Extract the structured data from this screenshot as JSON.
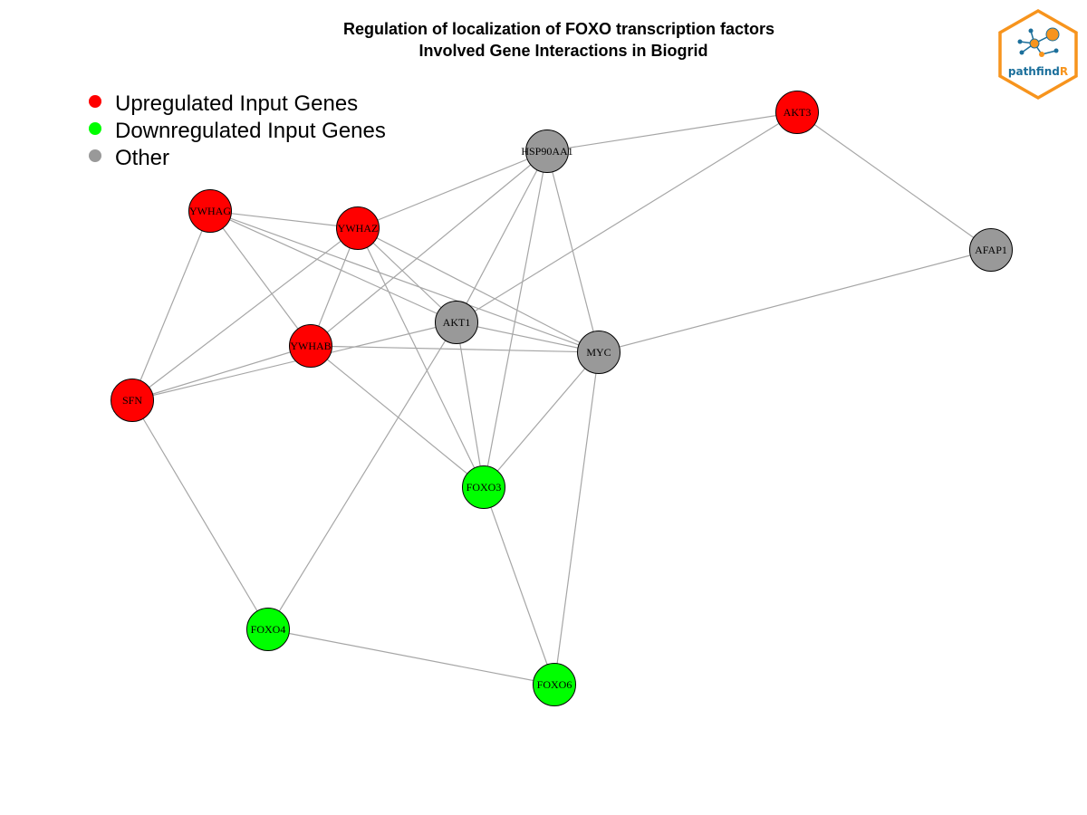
{
  "title": {
    "line1": "Regulation of localization of FOXO transcription factors",
    "line2": "Involved Gene Interactions in Biogrid"
  },
  "legend": [
    {
      "label": "Upregulated Input Genes",
      "color": "#ff0000"
    },
    {
      "label": "Downregulated Input Genes",
      "color": "#00ff00"
    },
    {
      "label": "Other",
      "color": "#999999"
    }
  ],
  "logo": {
    "text_main": "pathfind",
    "text_accent": "R",
    "border_color": "#f7941d",
    "text_color": "#1b6f9b",
    "accent_color": "#f7941d"
  },
  "colors": {
    "up": "#ff0000",
    "down": "#00ff00",
    "other": "#999999",
    "edge": "#a6a6a6"
  },
  "network": {
    "nodes": [
      {
        "id": "AKT3",
        "group": "up"
      },
      {
        "id": "HSP90AA1",
        "group": "other"
      },
      {
        "id": "YWHAG",
        "group": "up"
      },
      {
        "id": "YWHAZ",
        "group": "up"
      },
      {
        "id": "AFAP1",
        "group": "other"
      },
      {
        "id": "AKT1",
        "group": "other"
      },
      {
        "id": "YWHAB",
        "group": "up"
      },
      {
        "id": "MYC",
        "group": "other"
      },
      {
        "id": "SFN",
        "group": "up"
      },
      {
        "id": "FOXO3",
        "group": "down"
      },
      {
        "id": "FOXO4",
        "group": "down"
      },
      {
        "id": "FOXO6",
        "group": "down"
      }
    ],
    "edges": [
      [
        "HSP90AA1",
        "AKT3"
      ],
      [
        "AKT3",
        "AFAP1"
      ],
      [
        "AKT3",
        "AKT1"
      ],
      [
        "HSP90AA1",
        "YWHAZ"
      ],
      [
        "HSP90AA1",
        "AKT1"
      ],
      [
        "HSP90AA1",
        "MYC"
      ],
      [
        "HSP90AA1",
        "YWHAB"
      ],
      [
        "HSP90AA1",
        "FOXO3"
      ],
      [
        "YWHAG",
        "YWHAZ"
      ],
      [
        "YWHAG",
        "AKT1"
      ],
      [
        "YWHAG",
        "MYC"
      ],
      [
        "YWHAG",
        "YWHAB"
      ],
      [
        "YWHAG",
        "SFN"
      ],
      [
        "YWHAZ",
        "YWHAB"
      ],
      [
        "YWHAZ",
        "AKT1"
      ],
      [
        "YWHAZ",
        "MYC"
      ],
      [
        "YWHAZ",
        "SFN"
      ],
      [
        "YWHAZ",
        "FOXO3"
      ],
      [
        "AFAP1",
        "MYC"
      ],
      [
        "AKT1",
        "MYC"
      ],
      [
        "AKT1",
        "SFN"
      ],
      [
        "AKT1",
        "FOXO3"
      ],
      [
        "AKT1",
        "FOXO4"
      ],
      [
        "YWHAB",
        "MYC"
      ],
      [
        "YWHAB",
        "SFN"
      ],
      [
        "YWHAB",
        "FOXO3"
      ],
      [
        "MYC",
        "FOXO3"
      ],
      [
        "MYC",
        "FOXO6"
      ],
      [
        "SFN",
        "FOXO4"
      ],
      [
        "FOXO3",
        "FOXO6"
      ],
      [
        "FOXO4",
        "FOXO6"
      ]
    ]
  }
}
